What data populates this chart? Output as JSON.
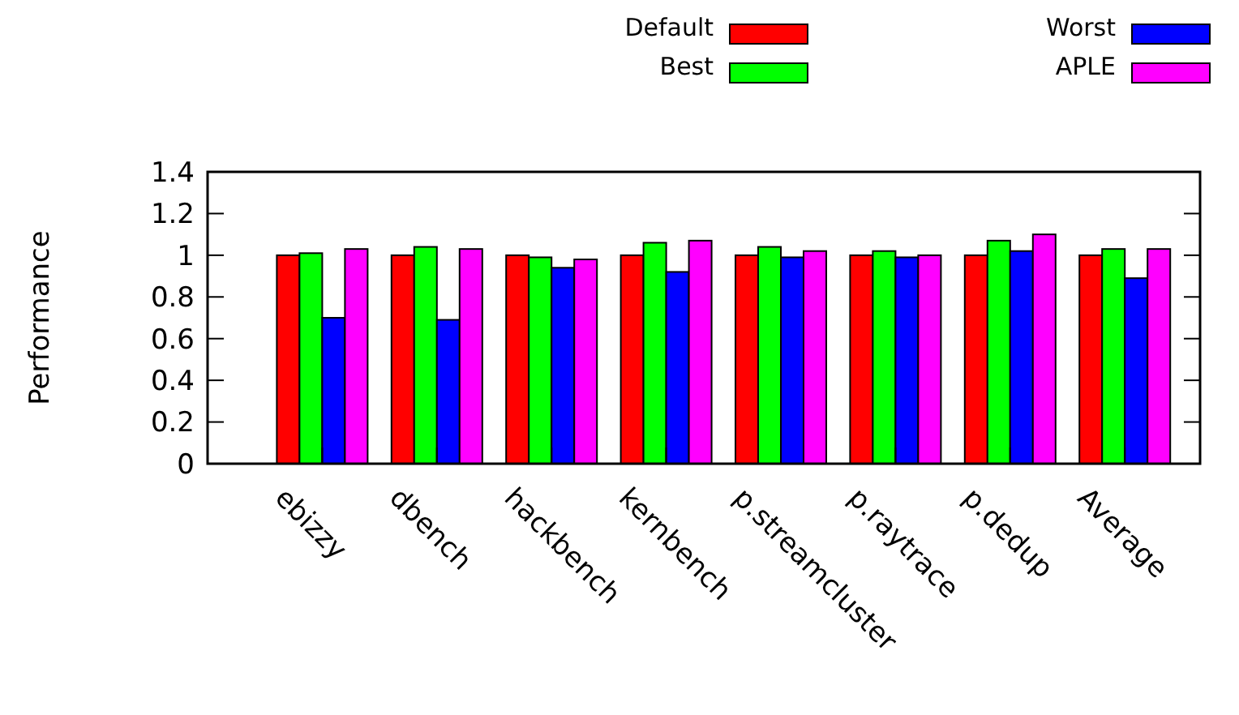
{
  "chart_data": {
    "type": "bar",
    "ylabel": "Performance",
    "categories": [
      "ebizzy",
      "dbench",
      "hackbench",
      "kernbench",
      "p.streamcluster",
      "p.raytrace",
      "p.dedup",
      "Average"
    ],
    "series": [
      {
        "name": "Default",
        "color": "#ff0000",
        "values": [
          1,
          1,
          1,
          1,
          1,
          1,
          1,
          1
        ]
      },
      {
        "name": "Best",
        "color": "#00ff00",
        "values": [
          1.01,
          1.04,
          0.99,
          1.06,
          1.04,
          1.02,
          1.07,
          1.03
        ]
      },
      {
        "name": "Worst",
        "color": "#0000ff",
        "values": [
          0.7,
          0.69,
          0.94,
          0.92,
          0.99,
          0.99,
          1.02,
          0.89
        ]
      },
      {
        "name": "APLE",
        "color": "#ff00ff",
        "values": [
          1.03,
          1.03,
          0.98,
          1.07,
          1.02,
          1.0,
          1.1,
          1.03
        ]
      }
    ],
    "ylim": [
      0,
      1.4
    ],
    "yticks": [
      0,
      0.2,
      0.4,
      0.6,
      0.8,
      1,
      1.2,
      1.4
    ],
    "legend": "top right",
    "grid": false
  }
}
